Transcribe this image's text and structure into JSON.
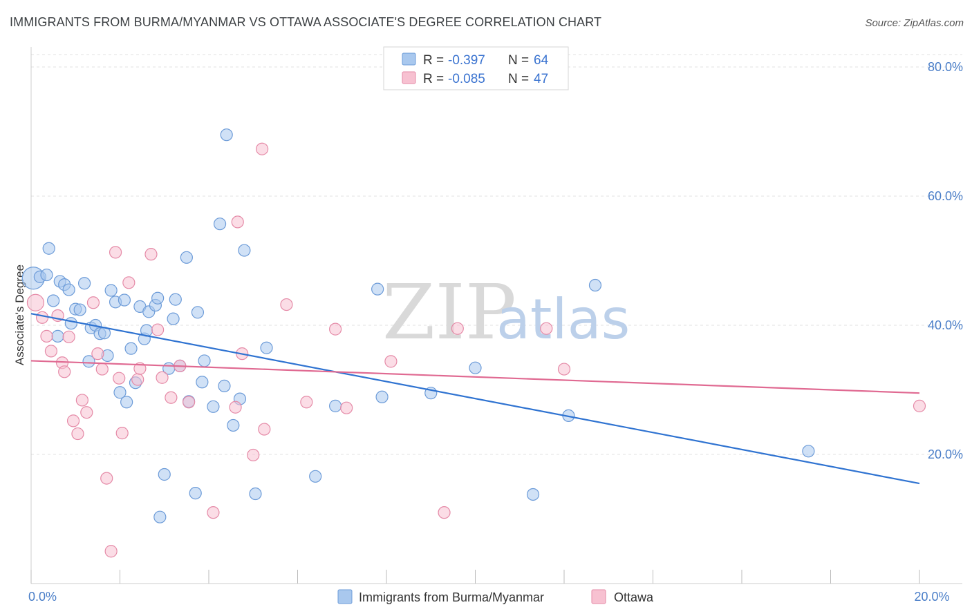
{
  "chart_data": {
    "type": "scatter",
    "title": "IMMIGRANTS FROM BURMA/MYANMAR VS OTTAWA ASSOCIATE'S DEGREE CORRELATION CHART",
    "source": "Source: ZipAtlas.com",
    "ylabel": "Associate's Degree",
    "xlim": [
      0,
      20
    ],
    "ylim": [
      0,
      82
    ],
    "x_ticks": [
      {
        "value": 0,
        "label": "0.0%"
      },
      {
        "value": 20,
        "label": "20.0%"
      }
    ],
    "y_ticks": [
      {
        "value": 20,
        "label": "20.0%"
      },
      {
        "value": 40,
        "label": "40.0%"
      },
      {
        "value": 60,
        "label": "60.0%"
      },
      {
        "value": 80,
        "label": "80.0%"
      }
    ],
    "watermark": {
      "part1": "ZIP",
      "part2": "atlas"
    },
    "legend": [
      {
        "r_label": "R = ",
        "r_value": "-0.397",
        "n_label": "N = ",
        "n_value": "64"
      },
      {
        "r_label": "R = ",
        "r_value": "-0.085",
        "n_label": "N = ",
        "n_value": "47"
      }
    ],
    "series": [
      {
        "name": "Immigrants from Burma/Myanmar",
        "color": "#a9c8ee",
        "stroke": "#6c9bd8",
        "line_color": "#2f73d1",
        "trend": {
          "x0": 0,
          "y0": 41.8,
          "x1": 20,
          "y1": 15.5
        },
        "points": [
          {
            "x": 0.05,
            "y": 47.3,
            "r": 16
          },
          {
            "x": 0.2,
            "y": 47.5
          },
          {
            "x": 0.35,
            "y": 47.8
          },
          {
            "x": 0.4,
            "y": 51.9
          },
          {
            "x": 0.5,
            "y": 43.8
          },
          {
            "x": 0.6,
            "y": 38.3
          },
          {
            "x": 0.65,
            "y": 46.8
          },
          {
            "x": 0.75,
            "y": 46.3
          },
          {
            "x": 0.85,
            "y": 45.5
          },
          {
            "x": 0.9,
            "y": 40.3
          },
          {
            "x": 1.0,
            "y": 42.5
          },
          {
            "x": 1.1,
            "y": 42.4
          },
          {
            "x": 1.2,
            "y": 46.5
          },
          {
            "x": 1.3,
            "y": 34.4
          },
          {
            "x": 1.35,
            "y": 39.6
          },
          {
            "x": 1.45,
            "y": 40.0
          },
          {
            "x": 1.55,
            "y": 38.7
          },
          {
            "x": 1.65,
            "y": 38.8
          },
          {
            "x": 1.72,
            "y": 35.3
          },
          {
            "x": 1.8,
            "y": 45.4
          },
          {
            "x": 1.9,
            "y": 43.6
          },
          {
            "x": 2.0,
            "y": 29.6
          },
          {
            "x": 2.1,
            "y": 43.9
          },
          {
            "x": 2.15,
            "y": 28.1
          },
          {
            "x": 2.25,
            "y": 36.4
          },
          {
            "x": 2.35,
            "y": 31.1
          },
          {
            "x": 2.45,
            "y": 42.9
          },
          {
            "x": 2.55,
            "y": 37.9
          },
          {
            "x": 2.6,
            "y": 39.2
          },
          {
            "x": 2.65,
            "y": 42.1
          },
          {
            "x": 2.8,
            "y": 43.1
          },
          {
            "x": 2.85,
            "y": 44.2
          },
          {
            "x": 2.9,
            "y": 10.3
          },
          {
            "x": 3.0,
            "y": 16.9
          },
          {
            "x": 3.1,
            "y": 33.3
          },
          {
            "x": 3.2,
            "y": 41.0
          },
          {
            "x": 3.25,
            "y": 44.0
          },
          {
            "x": 3.35,
            "y": 33.7
          },
          {
            "x": 3.5,
            "y": 50.5
          },
          {
            "x": 3.55,
            "y": 28.2
          },
          {
            "x": 3.7,
            "y": 14.0
          },
          {
            "x": 3.75,
            "y": 42.0
          },
          {
            "x": 3.85,
            "y": 31.2
          },
          {
            "x": 3.9,
            "y": 34.5
          },
          {
            "x": 4.1,
            "y": 27.4
          },
          {
            "x": 4.25,
            "y": 55.7
          },
          {
            "x": 4.35,
            "y": 30.6
          },
          {
            "x": 4.4,
            "y": 69.5
          },
          {
            "x": 4.55,
            "y": 24.5
          },
          {
            "x": 4.7,
            "y": 28.6
          },
          {
            "x": 4.8,
            "y": 51.6
          },
          {
            "x": 5.05,
            "y": 13.9
          },
          {
            "x": 5.3,
            "y": 36.5
          },
          {
            "x": 6.4,
            "y": 16.6
          },
          {
            "x": 6.85,
            "y": 27.5
          },
          {
            "x": 7.8,
            "y": 45.6
          },
          {
            "x": 7.9,
            "y": 28.9
          },
          {
            "x": 9.0,
            "y": 29.5
          },
          {
            "x": 10.0,
            "y": 33.4
          },
          {
            "x": 11.3,
            "y": 13.8
          },
          {
            "x": 12.1,
            "y": 26.0
          },
          {
            "x": 12.7,
            "y": 46.2
          },
          {
            "x": 17.5,
            "y": 20.5
          }
        ]
      },
      {
        "name": "Ottawa",
        "color": "#f7c1d1",
        "stroke": "#e58aa7",
        "line_color": "#e06a92",
        "trend": {
          "x0": 0,
          "y0": 34.5,
          "x1": 20,
          "y1": 29.5
        },
        "points": [
          {
            "x": 0.1,
            "y": 43.5,
            "r": 12
          },
          {
            "x": 0.25,
            "y": 41.2
          },
          {
            "x": 0.35,
            "y": 38.3
          },
          {
            "x": 0.45,
            "y": 36.0
          },
          {
            "x": 0.6,
            "y": 41.5
          },
          {
            "x": 0.7,
            "y": 34.2
          },
          {
            "x": 0.75,
            "y": 32.8
          },
          {
            "x": 0.85,
            "y": 38.2
          },
          {
            "x": 0.95,
            "y": 25.2
          },
          {
            "x": 1.05,
            "y": 23.2
          },
          {
            "x": 1.15,
            "y": 28.4
          },
          {
            "x": 1.25,
            "y": 26.5
          },
          {
            "x": 1.4,
            "y": 43.5
          },
          {
            "x": 1.5,
            "y": 35.6
          },
          {
            "x": 1.6,
            "y": 33.2
          },
          {
            "x": 1.7,
            "y": 16.3
          },
          {
            "x": 1.8,
            "y": 5.0
          },
          {
            "x": 1.9,
            "y": 51.3
          },
          {
            "x": 1.98,
            "y": 31.8
          },
          {
            "x": 2.05,
            "y": 23.3
          },
          {
            "x": 2.2,
            "y": 46.6
          },
          {
            "x": 2.4,
            "y": 31.6
          },
          {
            "x": 2.45,
            "y": 33.3
          },
          {
            "x": 2.7,
            "y": 51.0
          },
          {
            "x": 2.85,
            "y": 39.3
          },
          {
            "x": 2.95,
            "y": 31.9
          },
          {
            "x": 3.15,
            "y": 28.8
          },
          {
            "x": 3.35,
            "y": 33.7
          },
          {
            "x": 3.55,
            "y": 28.1
          },
          {
            "x": 4.1,
            "y": 11.0
          },
          {
            "x": 4.6,
            "y": 27.3
          },
          {
            "x": 4.65,
            "y": 56.0
          },
          {
            "x": 4.75,
            "y": 35.6
          },
          {
            "x": 5.0,
            "y": 19.9
          },
          {
            "x": 5.2,
            "y": 67.3
          },
          {
            "x": 5.25,
            "y": 23.9
          },
          {
            "x": 5.75,
            "y": 43.2
          },
          {
            "x": 6.2,
            "y": 28.1
          },
          {
            "x": 6.85,
            "y": 39.4
          },
          {
            "x": 7.1,
            "y": 27.2
          },
          {
            "x": 8.1,
            "y": 34.4
          },
          {
            "x": 9.3,
            "y": 11.0
          },
          {
            "x": 9.6,
            "y": 39.5
          },
          {
            "x": 11.6,
            "y": 39.5
          },
          {
            "x": 12.0,
            "y": 33.2
          },
          {
            "x": 20.0,
            "y": 27.5
          }
        ]
      }
    ]
  }
}
